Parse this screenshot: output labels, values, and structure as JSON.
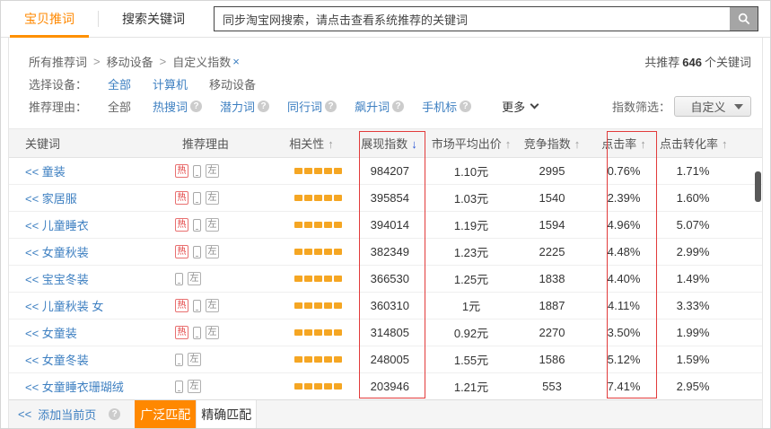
{
  "tabs": {
    "primary": "宝贝推词",
    "secondary": "搜索关键词"
  },
  "search": {
    "value": "同步淘宝网搜索，请点击查看系统推荐的关键词"
  },
  "breadcrumb": {
    "items": [
      "所有推荐词",
      "移动设备",
      "自定义指数"
    ],
    "separator": ">",
    "close": "×"
  },
  "summary": {
    "prefix": "共推荐",
    "count": "646",
    "suffix": "个关键词"
  },
  "device_filter": {
    "label": "选择设备：",
    "options": [
      {
        "label": "全部",
        "state": "link"
      },
      {
        "label": "计算机",
        "state": "link"
      },
      {
        "label": "移动设备",
        "state": "selected"
      }
    ]
  },
  "reason_filter": {
    "label": "推荐理由：",
    "all": "全部",
    "options": [
      "热搜词",
      "潜力词",
      "同行词",
      "飙升词",
      "手机标"
    ],
    "more": "更多"
  },
  "index_filter": {
    "label": "指数筛选：",
    "value": "自定义"
  },
  "table": {
    "columns": [
      {
        "label": "关键词"
      },
      {
        "label": "推荐理由"
      },
      {
        "label": "相关性",
        "arrow": "↑"
      },
      {
        "label": "展现指数",
        "arrow": "↓",
        "active": true
      },
      {
        "label": "市场平均出价",
        "arrow": "↑"
      },
      {
        "label": "竞争指数",
        "arrow": "↑"
      },
      {
        "label": "点击率",
        "arrow": "↑"
      },
      {
        "label": "点击转化率",
        "arrow": "↑"
      }
    ],
    "keyword_prefix": "<<",
    "badges": {
      "hot": "热",
      "left": "左"
    },
    "rows": [
      {
        "keyword": "童装",
        "hot": true,
        "relevance": 5,
        "impressions": "984207",
        "price": "1.10元",
        "competition": "2995",
        "ctr": "0.76%",
        "cvr": "1.71%"
      },
      {
        "keyword": "家居服",
        "hot": true,
        "relevance": 5,
        "impressions": "395854",
        "price": "1.03元",
        "competition": "1540",
        "ctr": "2.39%",
        "cvr": "1.60%"
      },
      {
        "keyword": "儿童睡衣",
        "hot": true,
        "relevance": 5,
        "impressions": "394014",
        "price": "1.19元",
        "competition": "1594",
        "ctr": "4.96%",
        "cvr": "5.07%"
      },
      {
        "keyword": "女童秋装",
        "hot": true,
        "relevance": 5,
        "impressions": "382349",
        "price": "1.23元",
        "competition": "2225",
        "ctr": "4.48%",
        "cvr": "2.99%"
      },
      {
        "keyword": "宝宝冬装",
        "hot": false,
        "relevance": 5,
        "impressions": "366530",
        "price": "1.25元",
        "competition": "1838",
        "ctr": "4.40%",
        "cvr": "1.49%"
      },
      {
        "keyword": "儿童秋装 女",
        "hot": true,
        "relevance": 5,
        "impressions": "360310",
        "price": "1元",
        "competition": "1887",
        "ctr": "4.11%",
        "cvr": "3.33%"
      },
      {
        "keyword": "女童装",
        "hot": true,
        "relevance": 5,
        "impressions": "314805",
        "price": "0.92元",
        "competition": "2270",
        "ctr": "3.50%",
        "cvr": "1.99%"
      },
      {
        "keyword": "女童冬装",
        "hot": false,
        "relevance": 5,
        "impressions": "248005",
        "price": "1.55元",
        "competition": "1586",
        "ctr": "5.12%",
        "cvr": "1.59%"
      },
      {
        "keyword": "女童睡衣珊瑚绒",
        "hot": false,
        "relevance": 5,
        "impressions": "203946",
        "price": "1.21元",
        "competition": "553",
        "ctr": "7.41%",
        "cvr": "2.95%"
      }
    ]
  },
  "footer": {
    "add_prefix": "<<",
    "add_label": "添加当前页",
    "broad": "广泛匹配",
    "exact": "精确匹配"
  },
  "colors": {
    "accent_orange": "#ff8800",
    "link_blue": "#3d7fc1",
    "active_sort_blue": "#2a56d6",
    "highlight_red": "#e23b3b",
    "relevance_bar_orange": "#f5a623"
  }
}
